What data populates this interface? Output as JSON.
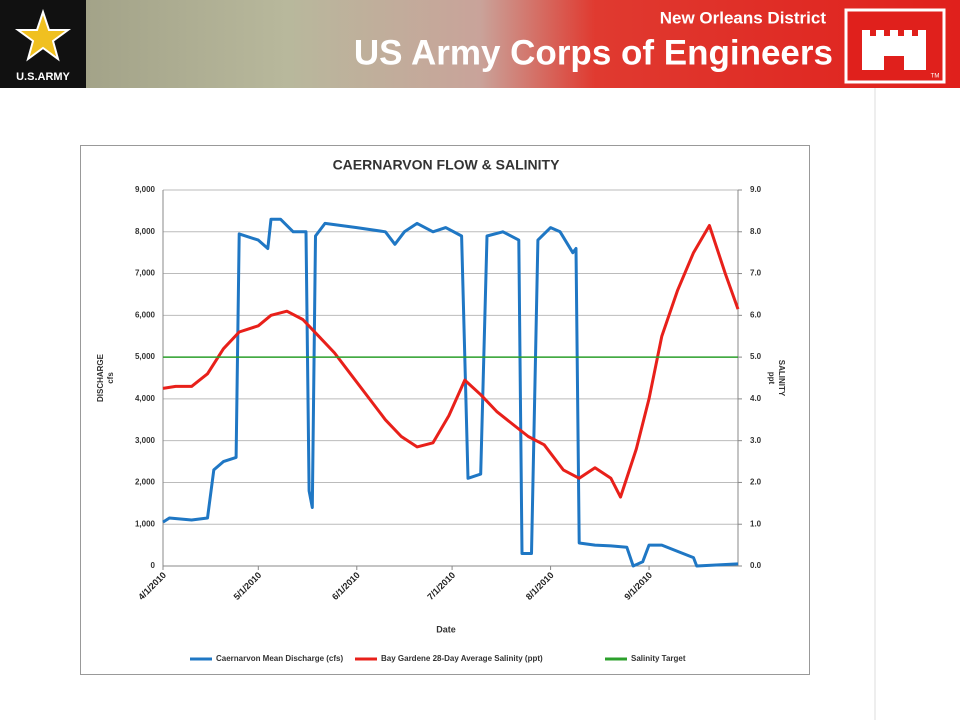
{
  "header": {
    "org": "US Army Corps of Engineers",
    "district": "New Orleans District",
    "army_logo": "U.S.ARMY",
    "trademark": "TM"
  },
  "chart_data": {
    "type": "line",
    "title": "CAERNARVON FLOW & SALINITY",
    "xlabel": "Date",
    "ylabel": "DISCHARGE",
    "ylabel_unit": "cfs",
    "y2label": "SALINITY",
    "y2label_unit": "ppt",
    "xlim": [
      "2010-04-01",
      "2010-09-29"
    ],
    "xticks": [
      {
        "value": "2010-04-01",
        "label": "4/1/2010"
      },
      {
        "value": "2010-05-01",
        "label": "5/1/2010"
      },
      {
        "value": "2010-06-01",
        "label": "6/1/2010"
      },
      {
        "value": "2010-07-01",
        "label": "7/1/2010"
      },
      {
        "value": "2010-08-01",
        "label": "8/1/2010"
      },
      {
        "value": "2010-09-01",
        "label": "9/1/2010"
      }
    ],
    "ylim": [
      0,
      9000
    ],
    "yticks": [
      0,
      {
        "value": 1000,
        "label": "1,000"
      },
      {
        "value": 2000,
        "label": "2,000"
      },
      {
        "value": 3000,
        "label": "3,000"
      },
      {
        "value": 4000,
        "label": "4,000"
      },
      {
        "value": 5000,
        "label": "5,000"
      },
      {
        "value": 6000,
        "label": "6,000"
      },
      {
        "value": 7000,
        "label": "7,000"
      },
      {
        "value": 8000,
        "label": "8,000"
      },
      {
        "value": 9000,
        "label": "9,000"
      }
    ],
    "y2lim": [
      0,
      9
    ],
    "y2ticks": [
      {
        "value": 0,
        "label": "0.0"
      },
      {
        "value": 1,
        "label": "1.0"
      },
      {
        "value": 2,
        "label": "2.0"
      },
      {
        "value": 3,
        "label": "3.0"
      },
      {
        "value": 4,
        "label": "4.0"
      },
      {
        "value": 5,
        "label": "5.0"
      },
      {
        "value": 6,
        "label": "6.0"
      },
      {
        "value": 7,
        "label": "7.0"
      },
      {
        "value": 8,
        "label": "8.0"
      },
      {
        "value": 9,
        "label": "9.0"
      }
    ],
    "legend": "bottom",
    "series": [
      {
        "name": "Caernarvon Mean Discharge (cfs)",
        "color": "#1f77c4",
        "x": [
          "2010-04-01",
          "2010-04-03",
          "2010-04-10",
          "2010-04-15",
          "2010-04-17",
          "2010-04-20",
          "2010-04-24",
          "2010-04-25",
          "2010-05-01",
          "2010-05-04",
          "2010-05-05",
          "2010-05-08",
          "2010-05-12",
          "2010-05-16",
          "2010-05-17",
          "2010-05-18",
          "2010-05-19",
          "2010-05-22",
          "2010-06-01",
          "2010-06-10",
          "2010-06-13",
          "2010-06-16",
          "2010-06-20",
          "2010-06-25",
          "2010-06-29",
          "2010-07-04",
          "2010-07-06",
          "2010-07-10",
          "2010-07-12",
          "2010-07-17",
          "2010-07-22",
          "2010-07-23",
          "2010-07-26",
          "2010-07-28",
          "2010-08-01",
          "2010-08-04",
          "2010-08-08",
          "2010-08-09",
          "2010-08-10",
          "2010-08-15",
          "2010-08-20",
          "2010-08-25",
          "2010-08-27",
          "2010-08-30",
          "2010-09-01",
          "2010-09-05",
          "2010-09-10",
          "2010-09-15",
          "2010-09-16",
          "2010-09-29"
        ],
        "values": [
          1050,
          1150,
          1100,
          1150,
          2300,
          2500,
          2600,
          7950,
          7800,
          7600,
          8300,
          8300,
          8000,
          8000,
          1800,
          1400,
          7900,
          8200,
          8100,
          8000,
          7700,
          8000,
          8200,
          8000,
          8100,
          7900,
          2100,
          2200,
          7900,
          8000,
          7800,
          300,
          300,
          7800,
          8100,
          8000,
          7500,
          7600,
          550,
          500,
          480,
          450,
          0,
          100,
          500,
          500,
          350,
          200,
          0,
          50
        ]
      },
      {
        "name": "Bay Gardene 28-Day Average Salinity (ppt)",
        "color": "#e8201a",
        "axis": "y2",
        "x": [
          "2010-04-01",
          "2010-04-05",
          "2010-04-10",
          "2010-04-15",
          "2010-04-20",
          "2010-04-25",
          "2010-05-01",
          "2010-05-05",
          "2010-05-10",
          "2010-05-15",
          "2010-05-20",
          "2010-05-25",
          "2010-05-30",
          "2010-06-05",
          "2010-06-10",
          "2010-06-15",
          "2010-06-20",
          "2010-06-25",
          "2010-06-30",
          "2010-07-05",
          "2010-07-10",
          "2010-07-15",
          "2010-07-20",
          "2010-07-25",
          "2010-07-30",
          "2010-08-05",
          "2010-08-10",
          "2010-08-15",
          "2010-08-20",
          "2010-08-23",
          "2010-08-28",
          "2010-09-01",
          "2010-09-05",
          "2010-09-10",
          "2010-09-15",
          "2010-09-20",
          "2010-09-25",
          "2010-09-29"
        ],
        "values": [
          4.25,
          4.3,
          4.3,
          4.6,
          5.2,
          5.6,
          5.75,
          6.0,
          6.1,
          5.9,
          5.5,
          5.1,
          4.6,
          4.0,
          3.5,
          3.1,
          2.85,
          2.95,
          3.6,
          4.45,
          4.1,
          3.7,
          3.4,
          3.1,
          2.9,
          2.3,
          2.1,
          2.35,
          2.1,
          1.65,
          2.8,
          4.0,
          5.5,
          6.6,
          7.5,
          8.15,
          7.0,
          6.15
        ]
      },
      {
        "name": "Salinity Target",
        "color": "#2ca02c",
        "axis": "y2",
        "x": [
          "2010-04-01",
          "2010-09-29"
        ],
        "values": [
          5,
          5
        ]
      }
    ]
  }
}
